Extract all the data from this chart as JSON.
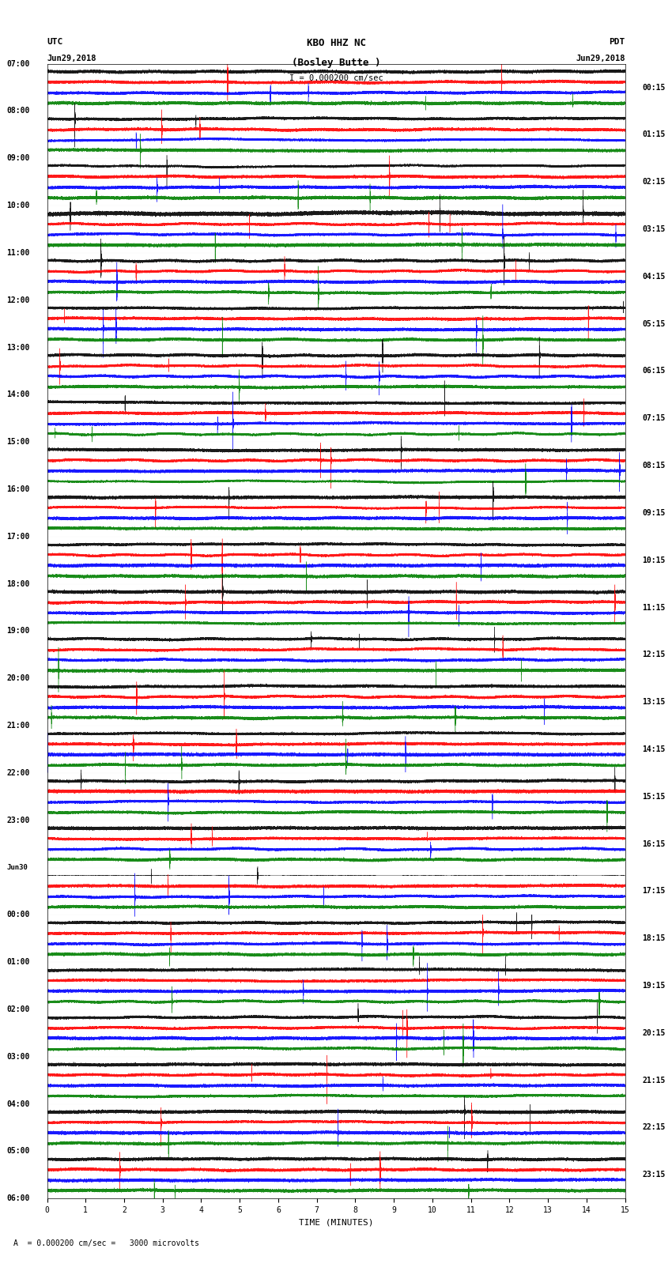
{
  "title_line1": "KBO HHZ NC",
  "title_line2": "(Bosley Butte )",
  "scale_label": "= 0.000200 cm/sec",
  "bottom_label": "A  = 0.000200 cm/sec =   3000 microvolts",
  "utc_label": "UTC",
  "pdt_label": "PDT",
  "date_left": "Jun29,2018",
  "date_right": "Jun29,2018",
  "xlabel": "TIME (MINUTES)",
  "left_times": [
    "07:00",
    "08:00",
    "09:00",
    "10:00",
    "11:00",
    "12:00",
    "13:00",
    "14:00",
    "15:00",
    "16:00",
    "17:00",
    "18:00",
    "19:00",
    "20:00",
    "21:00",
    "22:00",
    "23:00",
    "Jun30",
    "00:00",
    "01:00",
    "02:00",
    "03:00",
    "04:00",
    "05:00",
    "06:00"
  ],
  "right_times": [
    "00:15",
    "01:15",
    "02:15",
    "03:15",
    "04:15",
    "05:15",
    "06:15",
    "07:15",
    "08:15",
    "09:15",
    "10:15",
    "11:15",
    "12:15",
    "13:15",
    "14:15",
    "15:15",
    "16:15",
    "17:15",
    "18:15",
    "19:15",
    "20:15",
    "21:15",
    "22:15",
    "23:15"
  ],
  "trace_colors": [
    "black",
    "red",
    "blue",
    "green"
  ],
  "n_rows": 24,
  "traces_per_row": 4,
  "n_minutes": 15,
  "sample_rate": 100,
  "background_color": "white",
  "trace_amplitude": 0.35,
  "noise_amplitude": 0.15,
  "special_row_18_amplitude": 1.2,
  "special_row_4_amplitude": 0.8
}
